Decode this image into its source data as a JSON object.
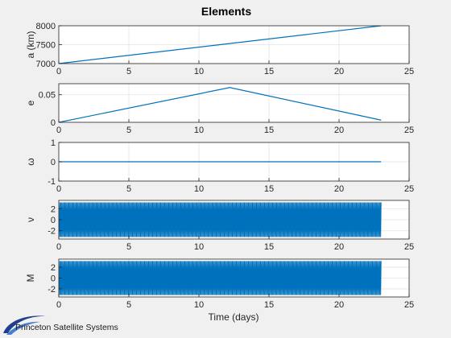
{
  "figure": {
    "title": "Elements",
    "xlabel": "Time (days)",
    "logo_text": "Princeton Satellite Systems"
  },
  "chart_data": [
    {
      "type": "line",
      "ylabel": "a (km)",
      "xlim": [
        0,
        25
      ],
      "ylim": [
        7000,
        8000
      ],
      "xticks": [
        0,
        5,
        10,
        15,
        20,
        25
      ],
      "yticks": [
        7000,
        7500,
        8000
      ],
      "grid": true,
      "series": [
        {
          "x": [
            0,
            23
          ],
          "y": [
            7000,
            8000
          ],
          "color": "#0072bd"
        }
      ]
    },
    {
      "type": "line",
      "ylabel": "e",
      "xlim": [
        0,
        25
      ],
      "ylim": [
        0,
        0.07
      ],
      "xticks": [
        0,
        5,
        10,
        15,
        20,
        25
      ],
      "yticks": [
        0,
        0.05
      ],
      "grid": true,
      "series": [
        {
          "x": [
            0,
            12.2,
            23
          ],
          "y": [
            0,
            0.063,
            0.004
          ],
          "color": "#0072bd"
        }
      ]
    },
    {
      "type": "line",
      "ylabel": "ω",
      "xlim": [
        0,
        25
      ],
      "ylim": [
        -1,
        1
      ],
      "xticks": [
        0,
        5,
        10,
        15,
        20,
        25
      ],
      "yticks": [
        -1,
        0,
        1
      ],
      "grid": true,
      "series": [
        {
          "x": [
            0,
            23
          ],
          "y": [
            0,
            0
          ],
          "color": "#0072bd"
        }
      ]
    },
    {
      "type": "line",
      "ylabel": "ν",
      "xlim": [
        0,
        25
      ],
      "ylim": [
        -3.5,
        3.5
      ],
      "xticks": [
        0,
        5,
        10,
        15,
        20,
        25
      ],
      "yticks": [
        -2,
        0,
        2
      ],
      "grid": true,
      "oscillation": {
        "x_start": 0,
        "x_end": 23,
        "amplitude": 3.14159,
        "period_days": 0.072,
        "color": "#0072bd"
      }
    },
    {
      "type": "line",
      "ylabel": "M",
      "xlim": [
        0,
        25
      ],
      "ylim": [
        -3.5,
        3.5
      ],
      "xticks": [
        0,
        5,
        10,
        15,
        20,
        25
      ],
      "yticks": [
        -2,
        0,
        2
      ],
      "grid": true,
      "oscillation": {
        "x_start": 0,
        "x_end": 23,
        "amplitude": 3.14159,
        "period_days": 0.072,
        "color": "#0072bd"
      }
    }
  ]
}
